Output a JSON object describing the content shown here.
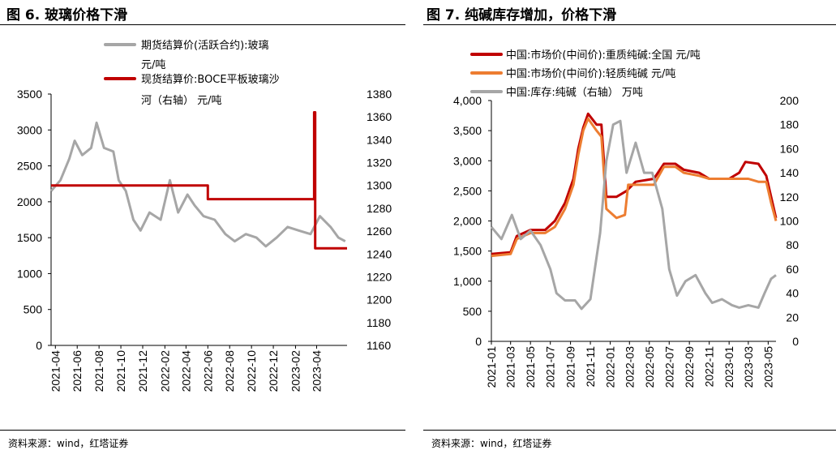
{
  "chart_data": [
    {
      "type": "line",
      "title": "图 6. 玻璃价格下滑",
      "source": "资料来源：wind，红塔证券",
      "ylim": [
        0,
        3500
      ],
      "yticks": [
        "3500",
        "3000",
        "2500",
        "2000",
        "1500",
        "1000",
        "500",
        "0"
      ],
      "y2lim": [
        1160,
        1380
      ],
      "y2ticks": [
        "1380",
        "1360",
        "1340",
        "1320",
        "1300",
        "1280",
        "1260",
        "1240",
        "1220",
        "1200",
        "1180",
        "1160"
      ],
      "xlim": [
        "2021-03-20",
        "2023-06-25"
      ],
      "xticks": [
        "2021-04",
        "2021-06",
        "2021-08",
        "2021-10",
        "2021-12",
        "2022-02",
        "2022-04",
        "2022-06",
        "2022-08",
        "2022-10",
        "2022-12",
        "2023-02",
        "2023-04"
      ],
      "legend": [
        "期货结算价(活跃合约):玻璃",
        "元/吨",
        "现货结算价:BOCE平板玻璃沙",
        "河（右轴） 元/吨"
      ],
      "series": [
        {
          "name": "期货结算价(活跃合约):玻璃 元/吨",
          "axis": "left",
          "color": "#a6a6a6",
          "x": [
            "2021-03-20",
            "2021-04-15",
            "2021-05-10",
            "2021-05-25",
            "2021-06-15",
            "2021-07-10",
            "2021-07-25",
            "2021-08-15",
            "2021-09-10",
            "2021-09-25",
            "2021-10-15",
            "2021-11-05",
            "2021-11-25",
            "2021-12-20",
            "2022-01-20",
            "2022-02-15",
            "2022-03-10",
            "2022-04-05",
            "2022-04-25",
            "2022-05-20",
            "2022-06-20",
            "2022-07-20",
            "2022-08-15",
            "2022-09-15",
            "2022-10-15",
            "2022-11-10",
            "2022-12-10",
            "2023-01-10",
            "2023-02-10",
            "2023-03-15",
            "2023-04-10",
            "2023-05-10",
            "2023-06-01",
            "2023-06-20"
          ],
          "y": [
            2150,
            2300,
            2600,
            2850,
            2650,
            2750,
            3100,
            2750,
            2700,
            2300,
            2150,
            1750,
            1600,
            1850,
            1750,
            2300,
            1850,
            2100,
            1950,
            1800,
            1750,
            1550,
            1450,
            1550,
            1500,
            1380,
            1500,
            1650,
            1600,
            1550,
            1800,
            1650,
            1500,
            1450
          ]
        },
        {
          "name": "现货结算价:BOCE平板玻璃沙河（右轴） 元/吨",
          "axis": "right",
          "color": "#c00000",
          "x": [
            "2021-03-20",
            "2022-06-01",
            "2022-06-01",
            "2023-03-25",
            "2023-03-25",
            "2023-03-28",
            "2023-03-28",
            "2023-06-25"
          ],
          "y": [
            1300,
            1300,
            1288,
            1288,
            1364,
            1364,
            1245,
            1245
          ]
        }
      ]
    },
    {
      "type": "line",
      "title": "图 7. 纯碱库存增加，价格下滑",
      "source": "资料来源：wind，红塔证券",
      "ylim": [
        0,
        4000
      ],
      "yticks": [
        "4,000",
        "3,500",
        "3,000",
        "2,500",
        "2,000",
        "1,500",
        "1,000",
        "500",
        "0"
      ],
      "y2lim": [
        0,
        200
      ],
      "y2ticks": [
        "200",
        "180",
        "160",
        "140",
        "120",
        "100",
        "80",
        "60",
        "40",
        "20",
        "0"
      ],
      "xlim": [
        "2021-01-01",
        "2023-05-25"
      ],
      "xticks": [
        "2021-01",
        "2021-03",
        "2021-05",
        "2021-07",
        "2021-09",
        "2021-11",
        "2022-01",
        "2022-03",
        "2022-05",
        "2022-07",
        "2022-09",
        "2022-11",
        "2023-01",
        "2023-03",
        "2023-05"
      ],
      "legend": [
        "中国:市场价(中间价):重质纯碱:全国 元/吨",
        "中国:市场价(中间价):轻质纯碱 元/吨",
        "中国:库存:纯碱（右轴） 万吨"
      ],
      "series": [
        {
          "name": "中国:市场价(中间价):重质纯碱:全国 元/吨",
          "axis": "left",
          "color": "#c00000",
          "x": [
            "2021-01-01",
            "2021-03-01",
            "2021-03-20",
            "2021-05-01",
            "2021-06-15",
            "2021-07-15",
            "2021-08-15",
            "2021-09-10",
            "2021-09-25",
            "2021-10-10",
            "2021-10-25",
            "2021-11-20",
            "2021-12-05",
            "2021-12-20",
            "2022-01-20",
            "2022-02-20",
            "2022-03-20",
            "2022-05-15",
            "2022-06-15",
            "2022-07-20",
            "2022-08-15",
            "2022-10-01",
            "2022-11-01",
            "2023-01-01",
            "2023-02-01",
            "2023-02-20",
            "2023-04-01",
            "2023-04-25",
            "2023-05-10",
            "2023-05-25"
          ],
          "y": [
            1450,
            1480,
            1750,
            1850,
            1850,
            2000,
            2300,
            2700,
            3200,
            3550,
            3780,
            3600,
            3600,
            2400,
            2400,
            2500,
            2650,
            2700,
            2950,
            2950,
            2850,
            2800,
            2700,
            2700,
            2800,
            2980,
            2950,
            2750,
            2400,
            2050
          ]
        },
        {
          "name": "中国:市场价(中间价):轻质纯碱 元/吨",
          "axis": "left",
          "color": "#ed7d31",
          "x": [
            "2021-01-01",
            "2021-03-01",
            "2021-03-20",
            "2021-05-01",
            "2021-06-15",
            "2021-07-15",
            "2021-08-15",
            "2021-09-10",
            "2021-09-25",
            "2021-10-10",
            "2021-10-25",
            "2021-11-20",
            "2021-12-05",
            "2021-12-20",
            "2022-01-20",
            "2022-02-15",
            "2022-02-25",
            "2022-05-15",
            "2022-06-15",
            "2022-07-20",
            "2022-08-15",
            "2022-10-01",
            "2022-11-01",
            "2023-01-01",
            "2023-02-01",
            "2023-03-01",
            "2023-04-01",
            "2023-04-25",
            "2023-05-10",
            "2023-05-25"
          ],
          "y": [
            1420,
            1450,
            1700,
            1800,
            1800,
            1900,
            2200,
            2600,
            3100,
            3500,
            3700,
            3500,
            3400,
            2200,
            2050,
            2100,
            2600,
            2600,
            2900,
            2900,
            2800,
            2750,
            2700,
            2700,
            2700,
            2700,
            2650,
            2650,
            2300,
            2000
          ]
        },
        {
          "name": "中国:库存:纯碱（右轴） 万吨",
          "axis": "right",
          "color": "#a6a6a6",
          "x": [
            "2021-01-01",
            "2021-02-01",
            "2021-03-05",
            "2021-04-01",
            "2021-05-01",
            "2021-06-01",
            "2021-07-01",
            "2021-07-20",
            "2021-08-15",
            "2021-09-15",
            "2021-10-05",
            "2021-11-01",
            "2021-12-01",
            "2021-12-20",
            "2022-01-10",
            "2022-02-01",
            "2022-02-20",
            "2022-03-20",
            "2022-04-15",
            "2022-05-10",
            "2022-06-10",
            "2022-07-01",
            "2022-07-25",
            "2022-08-20",
            "2022-09-20",
            "2022-10-20",
            "2022-11-10",
            "2022-12-10",
            "2023-01-10",
            "2023-02-01",
            "2023-03-01",
            "2023-04-01",
            "2023-04-20",
            "2023-05-10",
            "2023-05-25"
          ],
          "y": [
            95,
            85,
            105,
            85,
            92,
            80,
            60,
            40,
            34,
            34,
            27,
            35,
            90,
            150,
            180,
            183,
            140,
            165,
            140,
            140,
            110,
            60,
            38,
            50,
            55,
            40,
            32,
            35,
            30,
            28,
            30,
            28,
            40,
            52,
            55
          ]
        }
      ]
    }
  ]
}
